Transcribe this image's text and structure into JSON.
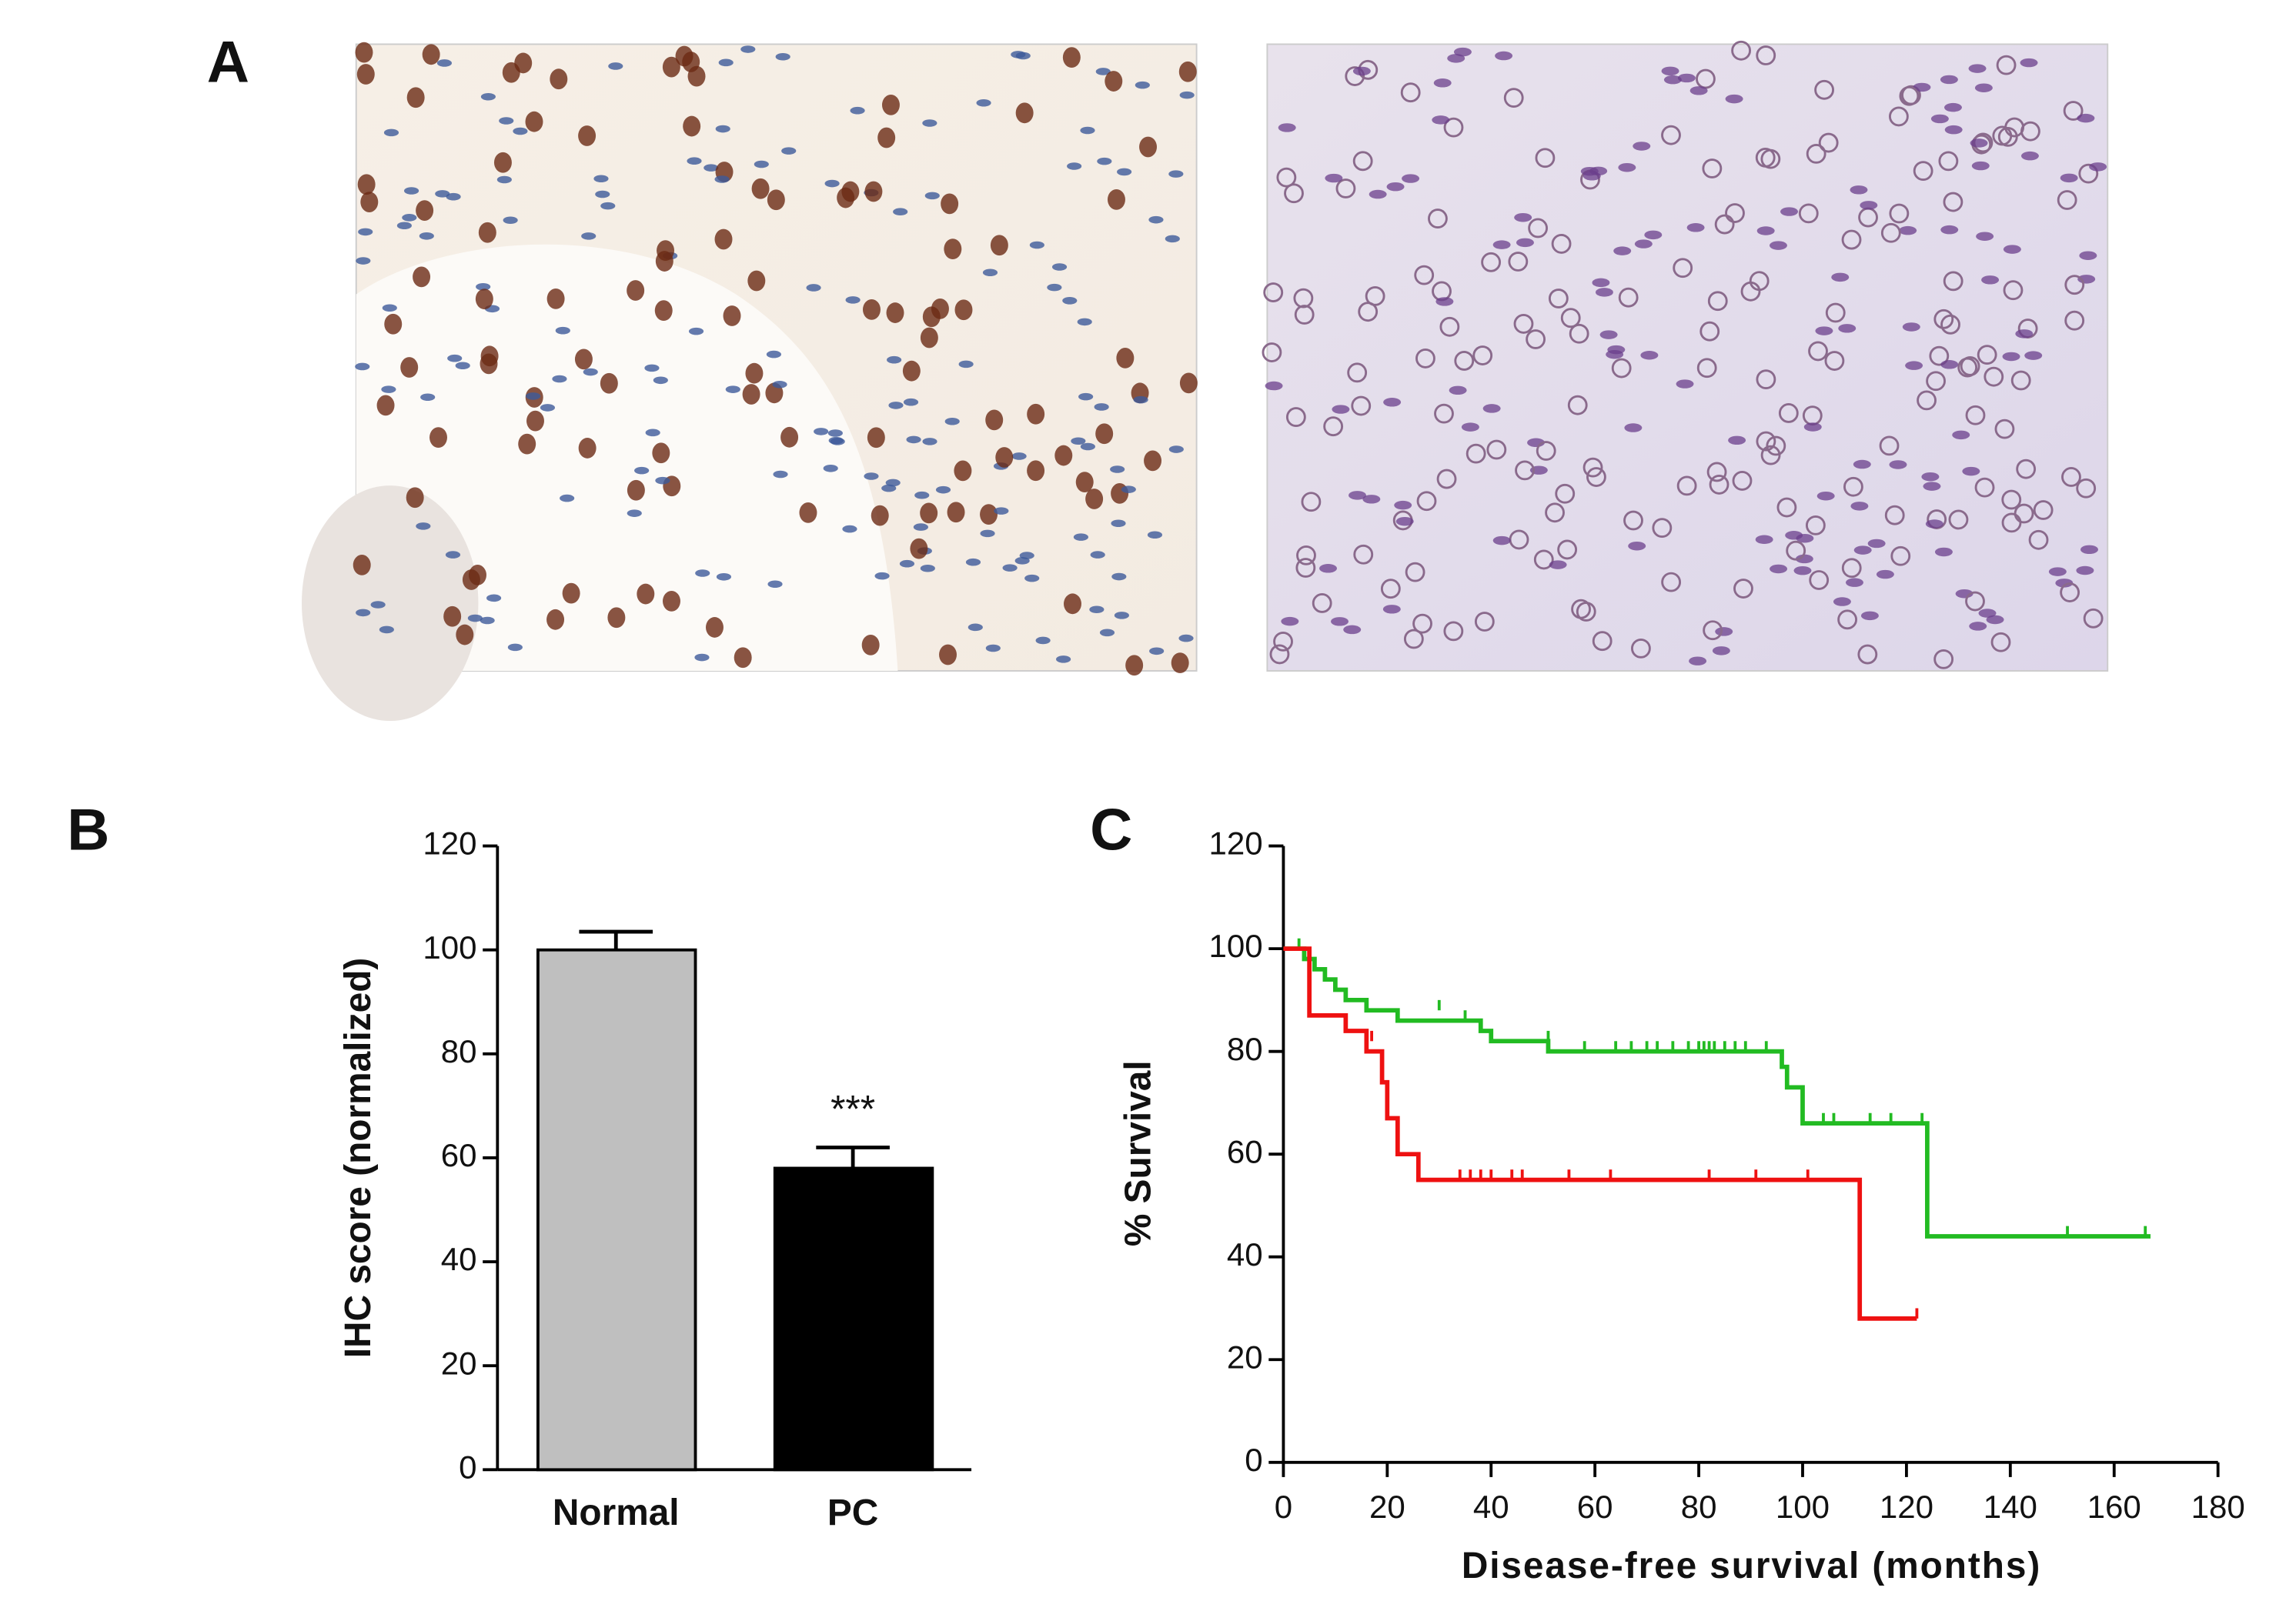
{
  "figure": {
    "panel_labels": [
      "A",
      "B",
      "C"
    ]
  },
  "chart_data": [
    {
      "type": "bar",
      "ylabel": "IHC score (normalized)",
      "categories": [
        "Normal",
        "PC"
      ],
      "values": [
        100,
        58
      ],
      "errors": [
        3.5,
        4
      ],
      "colors": [
        "#bfbfbf",
        "#000000"
      ],
      "annotations": [
        {
          "text": "***",
          "x": "PC"
        }
      ],
      "ylim": [
        0,
        120
      ],
      "yticks": [
        0,
        20,
        40,
        60,
        80,
        100,
        120
      ]
    },
    {
      "type": "line",
      "xlabel": "Disease-free survival (months)",
      "ylabel": "% Survival",
      "step": true,
      "series": [
        {
          "color": "#22bb22",
          "x": [
            0,
            4,
            6,
            8,
            10,
            12,
            16,
            22,
            38,
            40,
            51,
            96,
            97,
            100,
            124,
            167
          ],
          "values": [
            100,
            98,
            96,
            94,
            92,
            90,
            88,
            86,
            84,
            82,
            80,
            77,
            73,
            66,
            44,
            44
          ],
          "censor_x": [
            3,
            30,
            35,
            51,
            58,
            64,
            67,
            70,
            72,
            75,
            78,
            80,
            81,
            82,
            83,
            85,
            87,
            89,
            93,
            104,
            106,
            113,
            117,
            123,
            151,
            166
          ],
          "censor_values": [
            100,
            88,
            86,
            82,
            80,
            80,
            80,
            80,
            80,
            80,
            80,
            80,
            80,
            80,
            80,
            80,
            80,
            80,
            80,
            66,
            66,
            66,
            66,
            66,
            44,
            44
          ]
        },
        {
          "color": "#ee1111",
          "x": [
            0,
            5,
            12,
            16,
            19,
            20,
            22,
            26,
            111,
            122
          ],
          "values": [
            100,
            87,
            84,
            80,
            74,
            67,
            60,
            55,
            28,
            28
          ],
          "censor_x": [
            17,
            34,
            36,
            38,
            40,
            44,
            46,
            55,
            63,
            82,
            91,
            101,
            122
          ],
          "censor_values": [
            82,
            55,
            55,
            55,
            55,
            55,
            55,
            55,
            55,
            55,
            55,
            55,
            28
          ]
        }
      ],
      "xlim": [
        0,
        180
      ],
      "xticks": [
        0,
        20,
        40,
        60,
        80,
        100,
        120,
        140,
        160,
        180
      ],
      "ylim": [
        0,
        120
      ],
      "yticks": [
        0,
        20,
        40,
        60,
        80,
        100,
        120
      ]
    }
  ]
}
